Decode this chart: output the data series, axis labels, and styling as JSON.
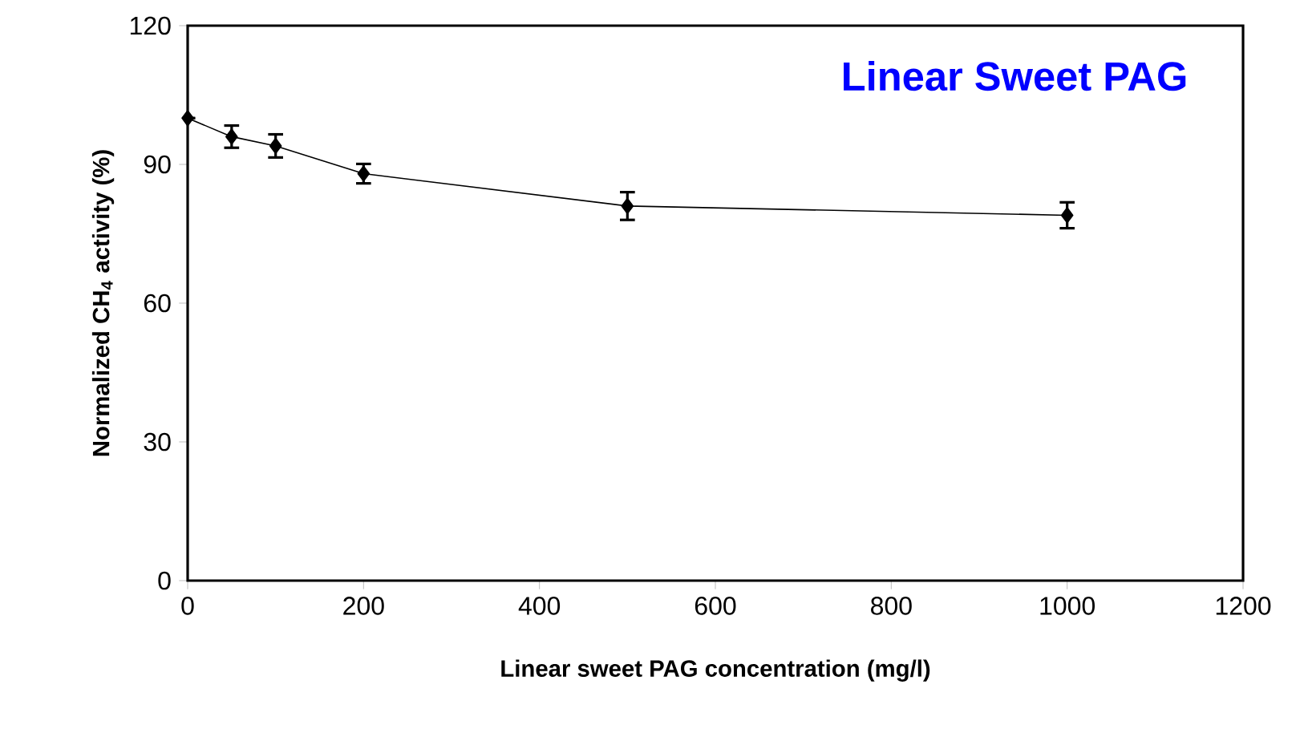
{
  "chart_data": {
    "type": "line",
    "title": "Linear Sweet PAG",
    "xlabel": "Linear sweet PAG concentration (mg/l)",
    "ylabel": "Normalized CH$_{4}$ activity (%)",
    "x": [
      0,
      50,
      100,
      200,
      500,
      1000
    ],
    "series": [
      {
        "color": "#000000",
        "values": [
          100,
          96,
          94,
          88,
          81,
          79
        ],
        "errors": [
          null,
          2.4,
          2.5,
          2.1,
          3,
          2.8
        ]
      }
    ],
    "xlim": [
      0,
      1200
    ],
    "xticks": [
      0,
      200,
      400,
      600,
      800,
      1000,
      1200
    ],
    "ylim": [
      0,
      120
    ],
    "yticks": [
      0,
      30,
      60,
      90,
      120
    ],
    "marker": "diamond",
    "line_style": "solid",
    "grid": false
  }
}
